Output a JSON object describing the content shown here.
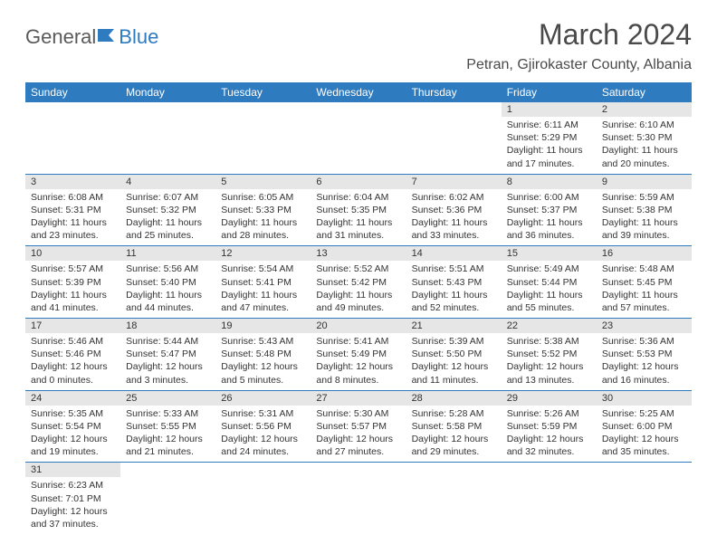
{
  "logo": {
    "word1": "General",
    "word2": "Blue"
  },
  "title": "March 2024",
  "location": "Petran, Gjirokaster County, Albania",
  "colors": {
    "header_bg": "#2f7bbf",
    "header_text": "#ffffff",
    "daynum_bg": "#e6e6e6",
    "row_border": "#2f7bbf",
    "text": "#333333",
    "logo_gray": "#5a5a5a",
    "logo_blue": "#2f7bbf"
  },
  "weekdays": [
    "Sunday",
    "Monday",
    "Tuesday",
    "Wednesday",
    "Thursday",
    "Friday",
    "Saturday"
  ],
  "weeks": [
    [
      null,
      null,
      null,
      null,
      null,
      {
        "n": "1",
        "rise": "Sunrise: 6:11 AM",
        "set": "Sunset: 5:29 PM",
        "day": "Daylight: 11 hours and 17 minutes."
      },
      {
        "n": "2",
        "rise": "Sunrise: 6:10 AM",
        "set": "Sunset: 5:30 PM",
        "day": "Daylight: 11 hours and 20 minutes."
      }
    ],
    [
      {
        "n": "3",
        "rise": "Sunrise: 6:08 AM",
        "set": "Sunset: 5:31 PM",
        "day": "Daylight: 11 hours and 23 minutes."
      },
      {
        "n": "4",
        "rise": "Sunrise: 6:07 AM",
        "set": "Sunset: 5:32 PM",
        "day": "Daylight: 11 hours and 25 minutes."
      },
      {
        "n": "5",
        "rise": "Sunrise: 6:05 AM",
        "set": "Sunset: 5:33 PM",
        "day": "Daylight: 11 hours and 28 minutes."
      },
      {
        "n": "6",
        "rise": "Sunrise: 6:04 AM",
        "set": "Sunset: 5:35 PM",
        "day": "Daylight: 11 hours and 31 minutes."
      },
      {
        "n": "7",
        "rise": "Sunrise: 6:02 AM",
        "set": "Sunset: 5:36 PM",
        "day": "Daylight: 11 hours and 33 minutes."
      },
      {
        "n": "8",
        "rise": "Sunrise: 6:00 AM",
        "set": "Sunset: 5:37 PM",
        "day": "Daylight: 11 hours and 36 minutes."
      },
      {
        "n": "9",
        "rise": "Sunrise: 5:59 AM",
        "set": "Sunset: 5:38 PM",
        "day": "Daylight: 11 hours and 39 minutes."
      }
    ],
    [
      {
        "n": "10",
        "rise": "Sunrise: 5:57 AM",
        "set": "Sunset: 5:39 PM",
        "day": "Daylight: 11 hours and 41 minutes."
      },
      {
        "n": "11",
        "rise": "Sunrise: 5:56 AM",
        "set": "Sunset: 5:40 PM",
        "day": "Daylight: 11 hours and 44 minutes."
      },
      {
        "n": "12",
        "rise": "Sunrise: 5:54 AM",
        "set": "Sunset: 5:41 PM",
        "day": "Daylight: 11 hours and 47 minutes."
      },
      {
        "n": "13",
        "rise": "Sunrise: 5:52 AM",
        "set": "Sunset: 5:42 PM",
        "day": "Daylight: 11 hours and 49 minutes."
      },
      {
        "n": "14",
        "rise": "Sunrise: 5:51 AM",
        "set": "Sunset: 5:43 PM",
        "day": "Daylight: 11 hours and 52 minutes."
      },
      {
        "n": "15",
        "rise": "Sunrise: 5:49 AM",
        "set": "Sunset: 5:44 PM",
        "day": "Daylight: 11 hours and 55 minutes."
      },
      {
        "n": "16",
        "rise": "Sunrise: 5:48 AM",
        "set": "Sunset: 5:45 PM",
        "day": "Daylight: 11 hours and 57 minutes."
      }
    ],
    [
      {
        "n": "17",
        "rise": "Sunrise: 5:46 AM",
        "set": "Sunset: 5:46 PM",
        "day": "Daylight: 12 hours and 0 minutes."
      },
      {
        "n": "18",
        "rise": "Sunrise: 5:44 AM",
        "set": "Sunset: 5:47 PM",
        "day": "Daylight: 12 hours and 3 minutes."
      },
      {
        "n": "19",
        "rise": "Sunrise: 5:43 AM",
        "set": "Sunset: 5:48 PM",
        "day": "Daylight: 12 hours and 5 minutes."
      },
      {
        "n": "20",
        "rise": "Sunrise: 5:41 AM",
        "set": "Sunset: 5:49 PM",
        "day": "Daylight: 12 hours and 8 minutes."
      },
      {
        "n": "21",
        "rise": "Sunrise: 5:39 AM",
        "set": "Sunset: 5:50 PM",
        "day": "Daylight: 12 hours and 11 minutes."
      },
      {
        "n": "22",
        "rise": "Sunrise: 5:38 AM",
        "set": "Sunset: 5:52 PM",
        "day": "Daylight: 12 hours and 13 minutes."
      },
      {
        "n": "23",
        "rise": "Sunrise: 5:36 AM",
        "set": "Sunset: 5:53 PM",
        "day": "Daylight: 12 hours and 16 minutes."
      }
    ],
    [
      {
        "n": "24",
        "rise": "Sunrise: 5:35 AM",
        "set": "Sunset: 5:54 PM",
        "day": "Daylight: 12 hours and 19 minutes."
      },
      {
        "n": "25",
        "rise": "Sunrise: 5:33 AM",
        "set": "Sunset: 5:55 PM",
        "day": "Daylight: 12 hours and 21 minutes."
      },
      {
        "n": "26",
        "rise": "Sunrise: 5:31 AM",
        "set": "Sunset: 5:56 PM",
        "day": "Daylight: 12 hours and 24 minutes."
      },
      {
        "n": "27",
        "rise": "Sunrise: 5:30 AM",
        "set": "Sunset: 5:57 PM",
        "day": "Daylight: 12 hours and 27 minutes."
      },
      {
        "n": "28",
        "rise": "Sunrise: 5:28 AM",
        "set": "Sunset: 5:58 PM",
        "day": "Daylight: 12 hours and 29 minutes."
      },
      {
        "n": "29",
        "rise": "Sunrise: 5:26 AM",
        "set": "Sunset: 5:59 PM",
        "day": "Daylight: 12 hours and 32 minutes."
      },
      {
        "n": "30",
        "rise": "Sunrise: 5:25 AM",
        "set": "Sunset: 6:00 PM",
        "day": "Daylight: 12 hours and 35 minutes."
      }
    ],
    [
      {
        "n": "31",
        "rise": "Sunrise: 6:23 AM",
        "set": "Sunset: 7:01 PM",
        "day": "Daylight: 12 hours and 37 minutes."
      },
      null,
      null,
      null,
      null,
      null,
      null
    ]
  ]
}
